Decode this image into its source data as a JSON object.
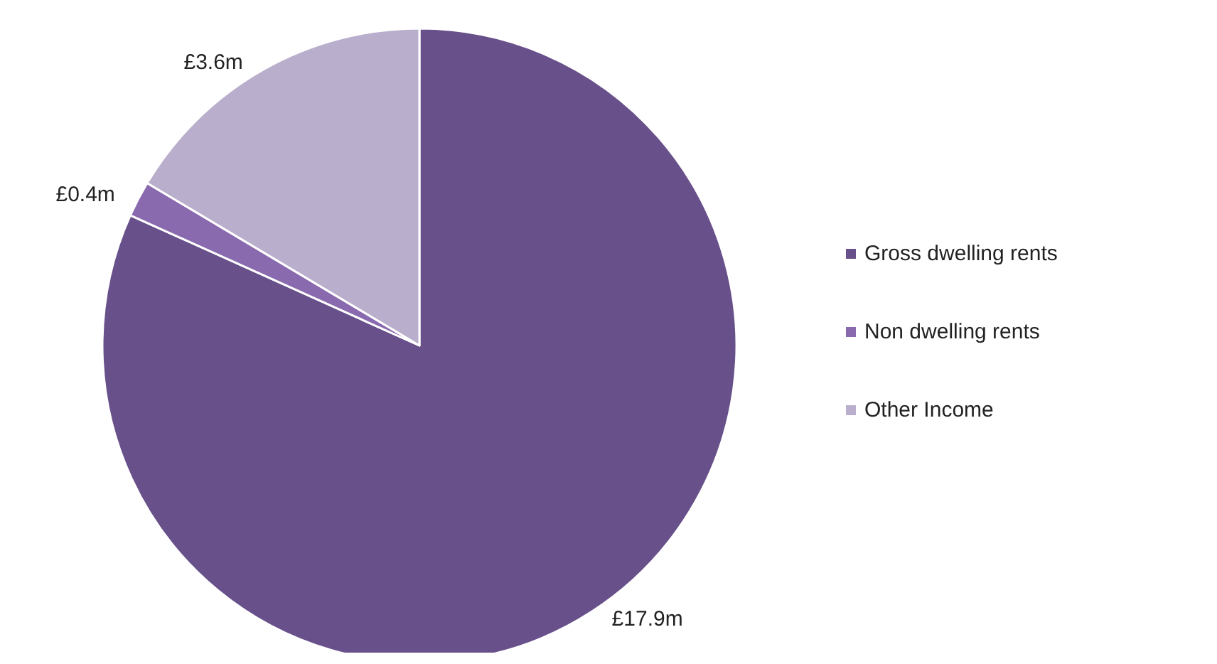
{
  "chart_data": {
    "type": "pie",
    "categories": [
      "Gross dwelling rents",
      "Non dwelling rents",
      "Other Income"
    ],
    "values": [
      17.9,
      0.4,
      3.6
    ],
    "colors": [
      "#68508a",
      "#8a6aae",
      "#b9aecb"
    ],
    "value_labels": [
      "£17.9m",
      "£0.4m",
      "£3.6m"
    ],
    "legend": "right"
  }
}
